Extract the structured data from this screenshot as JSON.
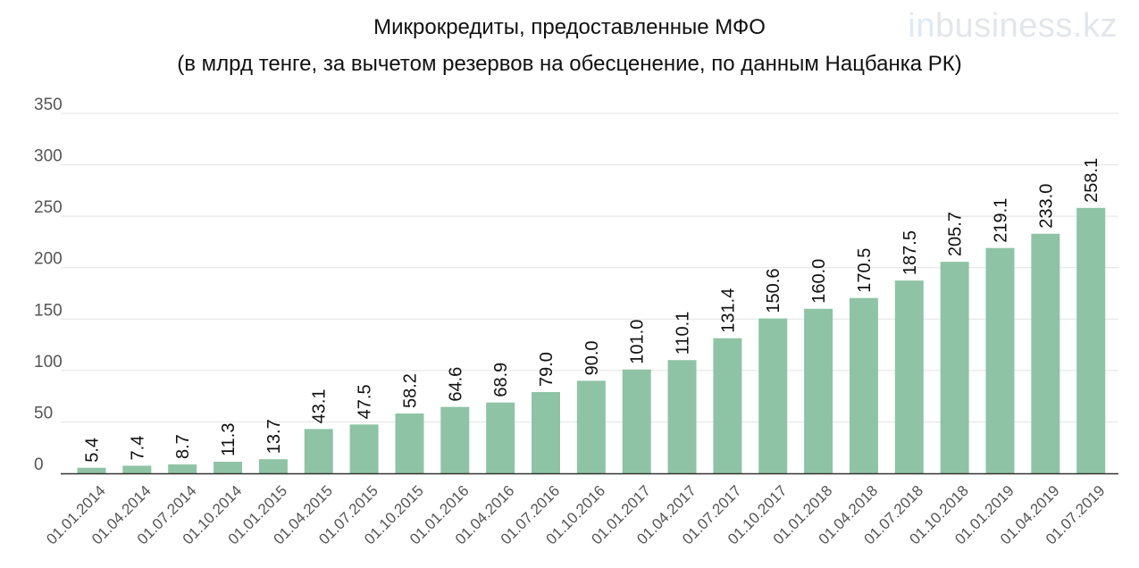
{
  "logo": {
    "prefix": "in",
    "rest": "business.kz"
  },
  "chart_data": {
    "type": "bar",
    "title": "Микрокредиты, предоставленные МФО",
    "subtitle": "(в млрд тенге, за вычетом резервов на обесценение, по данным Нацбанка РК)",
    "categories": [
      "01.01.2014",
      "01.04.2014",
      "01.07.2014",
      "01.10.2014",
      "01.01.2015",
      "01.04.2015",
      "01.07.2015",
      "01.10.2015",
      "01.01.2016",
      "01.04.2016",
      "01.07.2016",
      "01.10.2016",
      "01.01.2017",
      "01.04.2017",
      "01.07.2017",
      "01.10.2017",
      "01.01.2018",
      "01.04.2018",
      "01.07.2018",
      "01.10.2018",
      "01.01.2019",
      "01.04.2019",
      "01.07.2019"
    ],
    "values": [
      5.4,
      7.4,
      8.7,
      11.3,
      13.7,
      43.1,
      47.5,
      58.2,
      64.6,
      68.9,
      79.0,
      90.0,
      101.0,
      110.1,
      131.4,
      150.6,
      160.0,
      170.5,
      187.5,
      205.7,
      219.1,
      233.0,
      258.1
    ],
    "value_labels": [
      "5.4",
      "7.4",
      "8.7",
      "11.3",
      "13.7",
      "43.1",
      "47.5",
      "58.2",
      "64.6",
      "68.9",
      "79.0",
      "90.0",
      "101.0",
      "110.1",
      "131.4",
      "150.6",
      "160.0",
      "170.5",
      "187.5",
      "205.7",
      "219.1",
      "233.0",
      "258.1"
    ],
    "yticks": [
      0,
      50,
      100,
      150,
      200,
      250,
      300,
      350
    ],
    "ylim": [
      0,
      350
    ],
    "grid": true,
    "colors": {
      "bar": "#8fc3a5",
      "grid": "#e2e2e2",
      "axis": "#333333",
      "tick_text": "#555555",
      "label_text": "#111111"
    }
  }
}
